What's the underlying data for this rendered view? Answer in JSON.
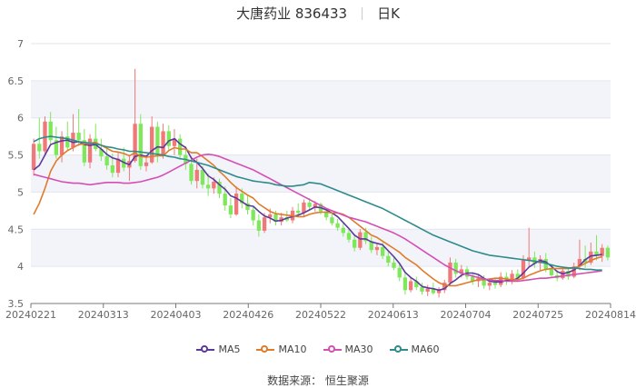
{
  "title": {
    "name": "大唐药业 836433",
    "period": "日K"
  },
  "source": "数据来源： 恒生聚源",
  "chart_data": {
    "type": "candlestick",
    "ylim": [
      3.5,
      7
    ],
    "yticks": [
      "3.5",
      "4",
      "4.5",
      "5",
      "5.5",
      "6",
      "6.5",
      "7"
    ],
    "xticks": [
      "20240221",
      "20240313",
      "20240403",
      "20240426",
      "20240522",
      "20240613",
      "20240704",
      "20240725",
      "20240814"
    ],
    "up_color": "#f07878",
    "down_color": "#7ee85a",
    "ohlc": [
      [
        5.3,
        5.72,
        5.22,
        5.65
      ],
      [
        5.65,
        6.0,
        5.45,
        5.55
      ],
      [
        5.55,
        6.02,
        5.5,
        5.95
      ],
      [
        5.95,
        6.08,
        5.65,
        5.7
      ],
      [
        5.7,
        5.88,
        5.45,
        5.5
      ],
      [
        5.5,
        5.82,
        5.4,
        5.75
      ],
      [
        5.75,
        5.95,
        5.55,
        5.6
      ],
      [
        5.6,
        6.05,
        5.55,
        5.8
      ],
      [
        5.8,
        6.12,
        5.62,
        5.7
      ],
      [
        5.7,
        5.85,
        5.35,
        5.4
      ],
      [
        5.4,
        5.78,
        5.32,
        5.72
      ],
      [
        5.72,
        5.92,
        5.55,
        5.58
      ],
      [
        5.58,
        5.72,
        5.42,
        5.48
      ],
      [
        5.48,
        5.62,
        5.3,
        5.36
      ],
      [
        5.36,
        5.52,
        5.2,
        5.26
      ],
      [
        5.26,
        5.55,
        5.2,
        5.45
      ],
      [
        5.45,
        5.6,
        5.28,
        5.33
      ],
      [
        5.33,
        5.5,
        5.15,
        5.42
      ],
      [
        5.42,
        6.66,
        5.4,
        5.92
      ],
      [
        5.92,
        6.05,
        5.3,
        5.35
      ],
      [
        5.35,
        5.5,
        5.28,
        5.4
      ],
      [
        5.4,
        6.02,
        5.38,
        5.88
      ],
      [
        5.88,
        5.95,
        5.4,
        5.5
      ],
      [
        5.5,
        5.92,
        5.45,
        5.82
      ],
      [
        5.82,
        5.9,
        5.55,
        5.62
      ],
      [
        5.62,
        5.85,
        5.5,
        5.72
      ],
      [
        5.72,
        5.78,
        5.45,
        5.5
      ],
      [
        5.5,
        5.62,
        5.3,
        5.38
      ],
      [
        5.38,
        5.48,
        5.1,
        5.15
      ],
      [
        5.15,
        5.45,
        5.05,
        5.3
      ],
      [
        5.3,
        5.35,
        5.05,
        5.1
      ],
      [
        5.1,
        5.25,
        4.95,
        5.05
      ],
      [
        5.05,
        5.2,
        4.98,
        5.14
      ],
      [
        5.14,
        5.18,
        4.92,
        4.98
      ],
      [
        4.98,
        5.08,
        4.75,
        4.82
      ],
      [
        4.82,
        4.92,
        4.65,
        4.7
      ],
      [
        4.7,
        5.08,
        4.68,
        4.98
      ],
      [
        4.98,
        5.05,
        4.78,
        4.85
      ],
      [
        4.85,
        4.95,
        4.7,
        4.76
      ],
      [
        4.76,
        4.8,
        4.55,
        4.62
      ],
      [
        4.62,
        4.7,
        4.4,
        4.48
      ],
      [
        4.48,
        4.72,
        4.45,
        4.66
      ],
      [
        4.66,
        4.78,
        4.58,
        4.7
      ],
      [
        4.7,
        4.75,
        4.55,
        4.6
      ],
      [
        4.6,
        4.72,
        4.55,
        4.66
      ],
      [
        4.66,
        4.75,
        4.6,
        4.62
      ],
      [
        4.62,
        4.8,
        4.58,
        4.75
      ],
      [
        4.75,
        4.85,
        4.68,
        4.72
      ],
      [
        4.72,
        4.9,
        4.68,
        4.86
      ],
      [
        4.86,
        4.92,
        4.76,
        4.8
      ],
      [
        4.8,
        4.88,
        4.74,
        4.84
      ],
      [
        4.84,
        4.86,
        4.7,
        4.74
      ],
      [
        4.74,
        4.78,
        4.62,
        4.66
      ],
      [
        4.66,
        4.72,
        4.55,
        4.58
      ],
      [
        4.58,
        4.64,
        4.48,
        4.52
      ],
      [
        4.52,
        4.58,
        4.4,
        4.45
      ],
      [
        4.45,
        4.52,
        4.32,
        4.36
      ],
      [
        4.36,
        4.42,
        4.2,
        4.25
      ],
      [
        4.25,
        4.5,
        4.22,
        4.46
      ],
      [
        4.46,
        4.52,
        4.3,
        4.34
      ],
      [
        4.34,
        4.4,
        4.18,
        4.22
      ],
      [
        4.22,
        4.3,
        4.15,
        4.26
      ],
      [
        4.26,
        4.32,
        4.1,
        4.14
      ],
      [
        4.14,
        4.2,
        4.0,
        4.05
      ],
      [
        4.05,
        4.12,
        3.95,
        3.98
      ],
      [
        3.98,
        4.02,
        3.8,
        3.85
      ],
      [
        3.85,
        3.92,
        3.62,
        3.68
      ],
      [
        3.68,
        3.85,
        3.65,
        3.8
      ],
      [
        3.8,
        3.86,
        3.68,
        3.72
      ],
      [
        3.72,
        3.78,
        3.62,
        3.66
      ],
      [
        3.66,
        3.75,
        3.6,
        3.7
      ],
      [
        3.7,
        3.78,
        3.62,
        3.64
      ],
      [
        3.64,
        3.72,
        3.58,
        3.68
      ],
      [
        3.68,
        3.82,
        3.64,
        3.78
      ],
      [
        3.78,
        4.12,
        3.75,
        4.05
      ],
      [
        4.05,
        4.1,
        3.85,
        3.9
      ],
      [
        3.9,
        4.02,
        3.85,
        3.96
      ],
      [
        3.96,
        4.0,
        3.82,
        3.86
      ],
      [
        3.86,
        3.92,
        3.75,
        3.8
      ],
      [
        3.8,
        3.88,
        3.72,
        3.84
      ],
      [
        3.84,
        3.88,
        3.7,
        3.74
      ],
      [
        3.74,
        3.82,
        3.68,
        3.78
      ],
      [
        3.78,
        3.85,
        3.7,
        3.75
      ],
      [
        3.75,
        3.92,
        3.72,
        3.86
      ],
      [
        3.86,
        3.92,
        3.75,
        3.8
      ],
      [
        3.8,
        3.95,
        3.76,
        3.9
      ],
      [
        3.9,
        3.96,
        3.8,
        3.84
      ],
      [
        3.84,
        4.15,
        3.82,
        4.08
      ],
      [
        4.08,
        4.52,
        4.0,
        4.12
      ],
      [
        4.12,
        4.2,
        3.98,
        4.04
      ],
      [
        4.04,
        4.15,
        3.95,
        4.1
      ],
      [
        4.1,
        4.18,
        3.92,
        3.96
      ],
      [
        3.96,
        4.02,
        3.85,
        3.88
      ],
      [
        3.88,
        3.95,
        3.8,
        3.84
      ],
      [
        3.84,
        4.0,
        3.82,
        3.94
      ],
      [
        3.94,
        3.98,
        3.82,
        3.86
      ],
      [
        3.86,
        4.05,
        3.84,
        4.0
      ],
      [
        4.0,
        4.36,
        3.95,
        4.1
      ],
      [
        4.1,
        4.28,
        3.98,
        4.05
      ],
      [
        4.05,
        4.32,
        4.02,
        4.2
      ],
      [
        4.2,
        4.42,
        4.08,
        4.14
      ],
      [
        4.14,
        4.3,
        4.06,
        4.25
      ],
      [
        4.25,
        4.28,
        4.08,
        4.12
      ]
    ],
    "series": [
      {
        "name": "MA5",
        "color": "#5b3a9b",
        "values": [
          5.3,
          5.36,
          5.5,
          5.64,
          5.67,
          5.69,
          5.7,
          5.67,
          5.68,
          5.64,
          5.63,
          5.64,
          5.58,
          5.51,
          5.46,
          5.44,
          5.4,
          5.37,
          5.48,
          5.5,
          5.48,
          5.56,
          5.61,
          5.6,
          5.69,
          5.72,
          5.65,
          5.6,
          5.46,
          5.4,
          5.32,
          5.22,
          5.17,
          5.1,
          5.04,
          4.95,
          4.92,
          4.87,
          4.82,
          4.81,
          4.74,
          4.68,
          4.65,
          4.61,
          4.62,
          4.65,
          4.67,
          4.69,
          4.72,
          4.76,
          4.8,
          4.79,
          4.76,
          4.72,
          4.67,
          4.59,
          4.51,
          4.42,
          4.37,
          4.37,
          4.33,
          4.31,
          4.29,
          4.21,
          4.13,
          4.04,
          3.92,
          3.85,
          3.8,
          3.73,
          3.71,
          3.7,
          3.68,
          3.7,
          3.77,
          3.82,
          3.88,
          3.91,
          3.91,
          3.89,
          3.84,
          3.8,
          3.79,
          3.79,
          3.81,
          3.81,
          3.84,
          3.91,
          3.99,
          4.04,
          4.08,
          4.06,
          4.0,
          3.93,
          3.9,
          3.92,
          3.95,
          4.01,
          4.09,
          4.14,
          4.15,
          4.16
        ]
      },
      {
        "name": "MA10",
        "color": "#e07b2b",
        "values": [
          4.7,
          4.85,
          5.05,
          5.28,
          5.42,
          5.5,
          5.56,
          5.6,
          5.64,
          5.65,
          5.66,
          5.67,
          5.63,
          5.59,
          5.55,
          5.54,
          5.52,
          5.49,
          5.53,
          5.48,
          5.47,
          5.48,
          5.49,
          5.49,
          5.56,
          5.6,
          5.58,
          5.58,
          5.53,
          5.53,
          5.48,
          5.42,
          5.36,
          5.28,
          5.21,
          5.13,
          5.06,
          5.01,
          4.96,
          4.92,
          4.84,
          4.79,
          4.74,
          4.71,
          4.7,
          4.69,
          4.68,
          4.67,
          4.67,
          4.7,
          4.72,
          4.73,
          4.73,
          4.72,
          4.72,
          4.7,
          4.66,
          4.6,
          4.54,
          4.48,
          4.42,
          4.39,
          4.34,
          4.29,
          4.24,
          4.19,
          4.12,
          4.07,
          4.02,
          3.95,
          3.89,
          3.83,
          3.78,
          3.75,
          3.74,
          3.74,
          3.76,
          3.78,
          3.8,
          3.82,
          3.82,
          3.83,
          3.84,
          3.84,
          3.83,
          3.82,
          3.82,
          3.84,
          3.88,
          3.91,
          3.94,
          3.96,
          3.97,
          3.97,
          3.97,
          3.97,
          3.98,
          4.0,
          4.04,
          4.08,
          4.11,
          4.13
        ]
      },
      {
        "name": "MA30",
        "color": "#d44fb4",
        "values": [
          5.24,
          5.22,
          5.2,
          5.18,
          5.16,
          5.14,
          5.13,
          5.12,
          5.12,
          5.11,
          5.1,
          5.11,
          5.12,
          5.13,
          5.13,
          5.13,
          5.12,
          5.12,
          5.13,
          5.14,
          5.16,
          5.18,
          5.2,
          5.23,
          5.27,
          5.31,
          5.35,
          5.39,
          5.43,
          5.47,
          5.5,
          5.51,
          5.5,
          5.48,
          5.45,
          5.42,
          5.39,
          5.36,
          5.33,
          5.3,
          5.26,
          5.22,
          5.18,
          5.14,
          5.1,
          5.06,
          5.02,
          4.98,
          4.94,
          4.9,
          4.86,
          4.82,
          4.78,
          4.75,
          4.72,
          4.69,
          4.66,
          4.64,
          4.62,
          4.6,
          4.57,
          4.54,
          4.51,
          4.48,
          4.45,
          4.41,
          4.37,
          4.32,
          4.27,
          4.22,
          4.17,
          4.12,
          4.07,
          4.02,
          3.98,
          3.94,
          3.91,
          3.89,
          3.87,
          3.85,
          3.83,
          3.82,
          3.81,
          3.81,
          3.8,
          3.8,
          3.8,
          3.81,
          3.82,
          3.83,
          3.84,
          3.84,
          3.85,
          3.86,
          3.87,
          3.88,
          3.89,
          3.9,
          3.91,
          3.92,
          3.93,
          3.94
        ]
      },
      {
        "name": "MA60",
        "color": "#2e8b8b",
        "values": [
          5.68,
          5.72,
          5.74,
          5.75,
          5.74,
          5.73,
          5.72,
          5.7,
          5.68,
          5.67,
          5.66,
          5.65,
          5.63,
          5.61,
          5.6,
          5.58,
          5.57,
          5.55,
          5.55,
          5.54,
          5.53,
          5.52,
          5.51,
          5.5,
          5.48,
          5.47,
          5.45,
          5.44,
          5.42,
          5.4,
          5.38,
          5.36,
          5.33,
          5.3,
          5.27,
          5.24,
          5.21,
          5.19,
          5.17,
          5.15,
          5.14,
          5.13,
          5.12,
          5.1,
          5.09,
          5.08,
          5.08,
          5.09,
          5.1,
          5.13,
          5.12,
          5.11,
          5.08,
          5.05,
          5.02,
          4.99,
          4.96,
          4.93,
          4.9,
          4.87,
          4.84,
          4.81,
          4.78,
          4.74,
          4.7,
          4.66,
          4.62,
          4.58,
          4.54,
          4.5,
          4.46,
          4.42,
          4.39,
          4.36,
          4.33,
          4.3,
          4.27,
          4.24,
          4.21,
          4.19,
          4.17,
          4.15,
          4.14,
          4.13,
          4.12,
          4.11,
          4.1,
          4.09,
          4.08,
          4.07,
          4.06,
          4.04,
          4.02,
          4.0,
          3.99,
          3.98,
          3.98,
          3.97,
          3.96,
          3.96,
          3.95,
          3.95
        ]
      }
    ]
  }
}
